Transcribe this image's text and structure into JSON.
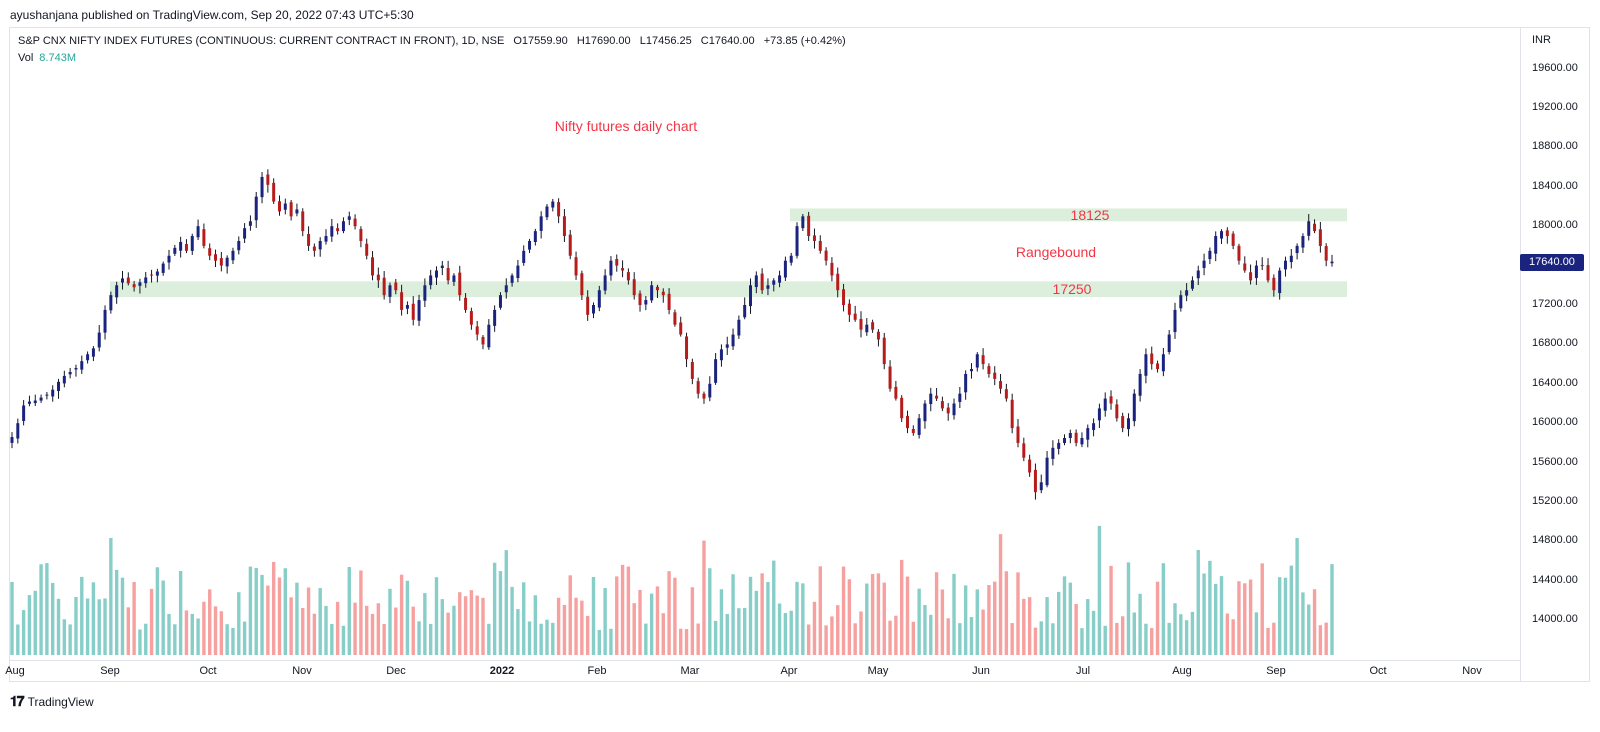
{
  "publisher": "ayushanjana published on TradingView.com, Sep 20, 2022 07:43 UTC+5:30",
  "legend": {
    "symbol": "S&P CNX NIFTY INDEX FUTURES (CONTINUOUS: CURRENT CONTRACT IN FRONT), 1D, NSE",
    "open": "O17559.90",
    "high": "H17690.00",
    "low": "L17456.25",
    "close": "C17640.00",
    "change": "+73.85 (+0.42%)",
    "vol_label": "Vol",
    "vol_value": "8.743M"
  },
  "price_axis": {
    "currency": "INR",
    "labels": [
      "19600.00",
      "19200.00",
      "18800.00",
      "18400.00",
      "18000.00",
      "17600.00",
      "17200.00",
      "16800.00",
      "16400.00",
      "16000.00",
      "15600.00",
      "15200.00",
      "14800.00",
      "14400.00",
      "14000.00"
    ],
    "last_price": "17640.00",
    "last_price_color": "#1a237e"
  },
  "time_axis": {
    "labels": [
      "Aug",
      "Sep",
      "Oct",
      "Nov",
      "Dec",
      "2022",
      "Feb",
      "Mar",
      "Apr",
      "May",
      "Jun",
      "Jul",
      "Aug",
      "Sep",
      "Oct",
      "Nov"
    ],
    "bold_label": "2022"
  },
  "footer": {
    "logo_icon": "tradingview-logo-icon",
    "brand": "TradingView"
  },
  "chart_data": {
    "type": "candlestick",
    "title": "Nifty futures daily chart",
    "ylim": [
      13700,
      19800
    ],
    "colors": {
      "up": "#26a69a",
      "down": "#ef5350",
      "up_candle": "#1a237e",
      "down_candle": "#b71c1c",
      "zone": "#c8e6c9",
      "annotation": "#f23645"
    },
    "zones": [
      {
        "label": "18125",
        "low": 18050,
        "high": 18180
      },
      {
        "label": "17250",
        "low": 17280,
        "high": 17440
      }
    ],
    "annotations": [
      "Nifty futures daily chart",
      "Rangebound",
      "18125",
      "17250"
    ],
    "close_approx": [
      15860,
      16000,
      16180,
      16220,
      16230,
      16260,
      16290,
      16340,
      16420,
      16480,
      16520,
      16560,
      16630,
      16700,
      16760,
      16920,
      17150,
      17300,
      17400,
      17470,
      17420,
      17380,
      17430,
      17480,
      17500,
      17540,
      17620,
      17700,
      17780,
      17840,
      17750,
      17900,
      18000,
      17800,
      17700,
      17650,
      17600,
      17680,
      17750,
      17850,
      17980,
      18050,
      18300,
      18500,
      18420,
      18250,
      18150,
      18230,
      18100,
      18170,
      17950,
      17800,
      17750,
      17850,
      17900,
      18000,
      17950,
      18050,
      18100,
      18000,
      17850,
      17700,
      17500,
      17450,
      17300,
      17400,
      17350,
      17150,
      17200,
      17050,
      17250,
      17400,
      17500,
      17550,
      17600,
      17450,
      17500,
      17300,
      17150,
      17000,
      16900,
      16800,
      17000,
      17150,
      17300,
      17400,
      17500,
      17600,
      17750,
      17850,
      17950,
      18100,
      18200,
      18250,
      18100,
      17900,
      17700,
      17500,
      17300,
      17100,
      17200,
      17350,
      17500,
      17650,
      17600,
      17550,
      17450,
      17300,
      17200,
      17250,
      17400,
      17350,
      17300,
      17150,
      17000,
      16900,
      16650,
      16450,
      16300,
      16250,
      16400,
      16650,
      16750,
      16800,
      16900,
      17050,
      17200,
      17400,
      17500,
      17350,
      17400,
      17450,
      17500,
      17650,
      17700,
      18000,
      18100,
      17900,
      17850,
      17750,
      17650,
      17500,
      17350,
      17200,
      17100,
      17050,
      16950,
      17000,
      16950,
      16850,
      16600,
      16350,
      16250,
      16050,
      15950,
      15900,
      16050,
      16200,
      16300,
      16250,
      16150,
      16100,
      16200,
      16300,
      16500,
      16550,
      16700,
      16600,
      16500,
      16450,
      16350,
      16250,
      15950,
      15800,
      15650,
      15500,
      15300,
      15400,
      15650,
      15750,
      15800,
      15850,
      15900,
      15800,
      15850,
      15950,
      16000,
      16150,
      16250,
      16200,
      16050,
      15950,
      16050,
      16300,
      16500,
      16700,
      16600,
      16550,
      16700,
      16900,
      17150,
      17300,
      17350,
      17450,
      17550,
      17650,
      17750,
      17900,
      17950,
      17900,
      17800,
      17650,
      17550,
      17450,
      17600,
      17600,
      17450,
      17350,
      17550,
      17650,
      17700,
      17800,
      17900,
      18050,
      17950,
      17800,
      17650,
      17640
    ]
  }
}
